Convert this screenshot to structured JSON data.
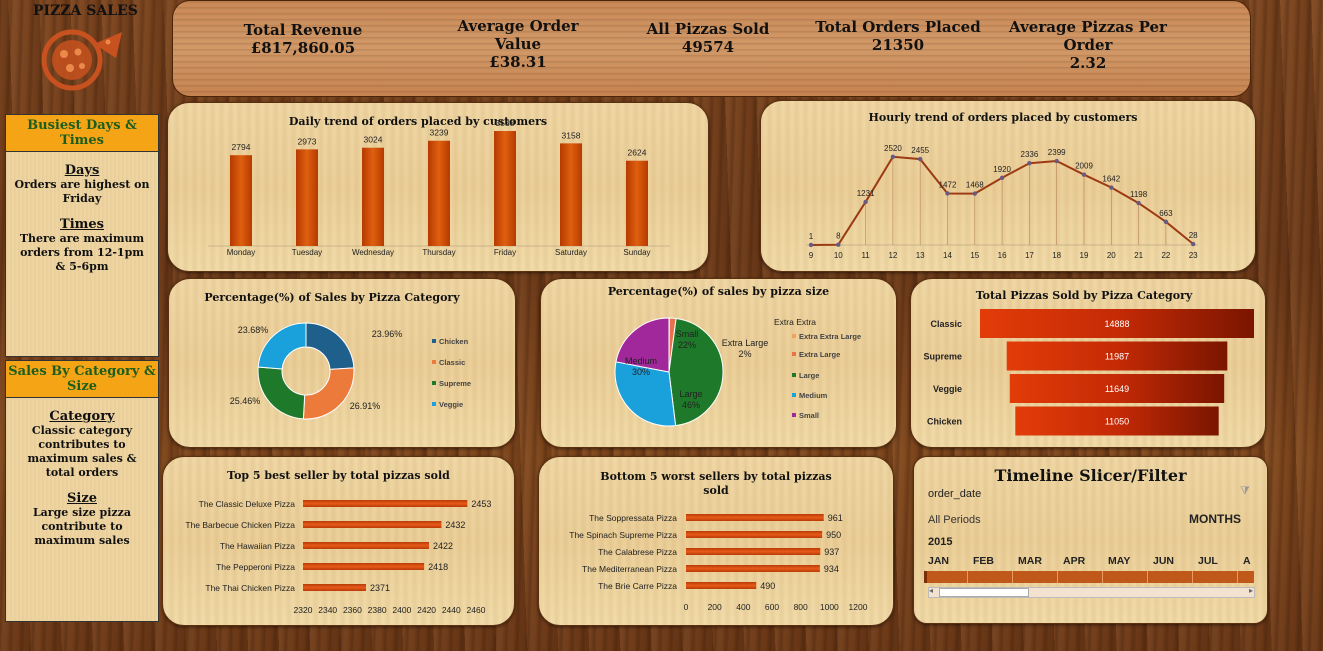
{
  "dashboard": {
    "title": "PIZZA SALES"
  },
  "kpis": [
    {
      "label": "Total Revenue",
      "value": "£817,860.05"
    },
    {
      "label": "Average Order Value",
      "value": "£38.31"
    },
    {
      "label": "All Pizzas Sold",
      "value": "49574"
    },
    {
      "label": "Total Orders Placed",
      "value": "21350"
    },
    {
      "label": "Average Pizzas Per Order",
      "value": "2.32"
    }
  ],
  "sidebar": {
    "busiest": {
      "header": "Busiest Days & Times",
      "days_title": "Days",
      "days_text": "Orders are highest on Friday",
      "times_title": "Times",
      "times_text": "There are maximum orders from 12-1pm & 5-6pm"
    },
    "sales": {
      "header": "Sales By Category & Size",
      "category_title": "Category",
      "category_text": "Classic category contributes to maximum sales & total orders",
      "size_title": "Size",
      "size_text": "Large size pizza contribute to maximum sales"
    }
  },
  "slicer": {
    "title": "Timeline Slicer/Filter",
    "field": "order_date",
    "periods": "All Periods",
    "unit": "MONTHS",
    "year": "2015",
    "months": [
      "JAN",
      "FEB",
      "MAR",
      "APR",
      "MAY",
      "JUN",
      "JUL",
      "A"
    ]
  },
  "colors": {
    "bar_dark": "#b53a00",
    "bar_light": "#e06010",
    "line": "#9c3a14",
    "chicken": "#1f5f8b",
    "classic": "#ec7a3a",
    "supreme": "#1e7a2a",
    "veggie": "#1aa0db",
    "small": "#a0289b",
    "extra_large": "#e8734a"
  },
  "chart_data": [
    {
      "id": "daily",
      "type": "bar",
      "title": "Daily trend of orders placed by customers",
      "categories": [
        "Monday",
        "Tuesday",
        "Wednesday",
        "Thursday",
        "Friday",
        "Saturday",
        "Sunday"
      ],
      "values": [
        2794,
        2973,
        3024,
        3239,
        3538,
        3158,
        2624
      ],
      "ylim": [
        0,
        4000
      ]
    },
    {
      "id": "hourly",
      "type": "line",
      "title": "Hourly trend of orders placed by customers",
      "categories": [
        "9",
        "10",
        "11",
        "12",
        "13",
        "14",
        "15",
        "16",
        "17",
        "18",
        "19",
        "20",
        "21",
        "22",
        "23"
      ],
      "values": [
        1,
        8,
        1231,
        2520,
        2455,
        1472,
        1468,
        1920,
        2336,
        2399,
        2009,
        1642,
        1198,
        663,
        28
      ],
      "ylim": [
        0,
        2800
      ]
    },
    {
      "id": "category_pct",
      "type": "pie",
      "title": "Percentage(%)  of Sales by Pizza Category",
      "categories": [
        "Chicken",
        "Classic",
        "Supreme",
        "Veggie"
      ],
      "values": [
        23.96,
        26.91,
        25.46,
        23.68
      ],
      "labels": [
        "23.96%",
        "26.91%",
        "25.46%",
        "23.68%"
      ]
    },
    {
      "id": "size_pct",
      "type": "pie",
      "title": "Percentage(%) of sales by pizza size",
      "categories": [
        "Extra Extra Large",
        "Extra Large",
        "Large",
        "Medium",
        "Small"
      ],
      "values": [
        0.1,
        2,
        46,
        30,
        22
      ],
      "legend_title": "Extra Extra",
      "labels": [
        "",
        "Extra Large 2%",
        "Large 46%",
        "Medium 30%",
        "Small 22%"
      ]
    },
    {
      "id": "category_sold",
      "type": "bar",
      "title": "Total Pizzas Sold by Pizza Category",
      "categories": [
        "Classic",
        "Supreme",
        "Veggie",
        "Chicken"
      ],
      "values": [
        14888,
        11987,
        11649,
        11050
      ]
    },
    {
      "id": "top5",
      "type": "bar",
      "title": "Top 5 best seller by total pizzas sold",
      "categories": [
        "The Classic Deluxe Pizza",
        "The Barbecue Chicken Pizza",
        "The Hawaiian Pizza",
        "The Pepperoni Pizza",
        "The Thai Chicken Pizza"
      ],
      "values": [
        2453,
        2432,
        2422,
        2418,
        2371
      ],
      "xlim": [
        2320,
        2460
      ],
      "ticks": [
        "2320",
        "2340",
        "2360",
        "2380",
        "2400",
        "2420",
        "2440",
        "2460"
      ]
    },
    {
      "id": "bottom5",
      "type": "bar",
      "title": "Bottom 5 worst sellers by total pizzas sold",
      "categories": [
        "The Soppressata Pizza",
        "The Spinach Supreme Pizza",
        "The Calabrese Pizza",
        "The Mediterranean Pizza",
        "The Brie Carre Pizza"
      ],
      "values": [
        961,
        950,
        937,
        934,
        490
      ],
      "xlim": [
        0,
        1200
      ],
      "ticks": [
        "0",
        "200",
        "400",
        "600",
        "800",
        "1000",
        "1200"
      ]
    }
  ]
}
